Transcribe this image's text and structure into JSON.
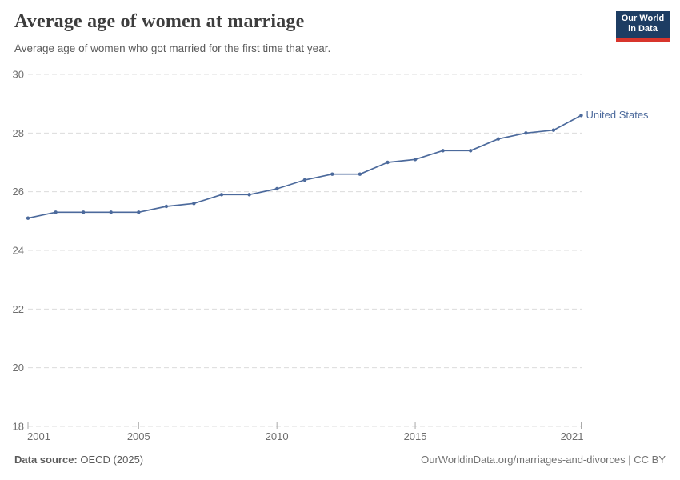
{
  "header": {
    "title": "Average age of women at marriage",
    "subtitle": "Average age of women who got married for the first time that year."
  },
  "logo": {
    "line1": "Our World",
    "line2": "in Data",
    "bg_color": "#1d3d63",
    "stripe_color": "#d8352c"
  },
  "chart_data": {
    "type": "line",
    "title": "Average age of women at marriage",
    "xlabel": "",
    "ylabel": "",
    "x": [
      2001,
      2002,
      2003,
      2004,
      2005,
      2006,
      2007,
      2008,
      2009,
      2010,
      2011,
      2012,
      2013,
      2014,
      2015,
      2016,
      2017,
      2018,
      2019,
      2020,
      2021
    ],
    "series": [
      {
        "name": "United States",
        "color": "#4c6a9c",
        "values": [
          25.1,
          25.3,
          25.3,
          25.3,
          25.3,
          25.5,
          25.6,
          25.9,
          25.9,
          26.1,
          26.4,
          26.6,
          26.6,
          27.0,
          27.1,
          27.4,
          27.4,
          27.8,
          28.0,
          28.1,
          28.6
        ]
      }
    ],
    "ylim": [
      18,
      30
    ],
    "yticks": [
      18,
      20,
      22,
      24,
      26,
      28,
      30
    ],
    "xticks": [
      2001,
      2005,
      2010,
      2015,
      2021
    ],
    "xlim": [
      2001,
      2021
    ],
    "grid": "horizontal-dashed",
    "legend_position": "end-of-line"
  },
  "colors": {
    "line": "#4c6a9c",
    "grid": "#dcdcdc",
    "tick_mark": "#aaaaaa",
    "tick_text": "#6e6e6e",
    "title_text": "#3d3d3d",
    "subtitle_text": "#5b5b5b",
    "footer_text": "#5b5b5b",
    "credit_text": "#737373"
  },
  "footer": {
    "source_label": "Data source:",
    "source_value": "OECD (2025)",
    "credit": "OurWorldinData.org/marriages-and-divorces | CC BY"
  }
}
